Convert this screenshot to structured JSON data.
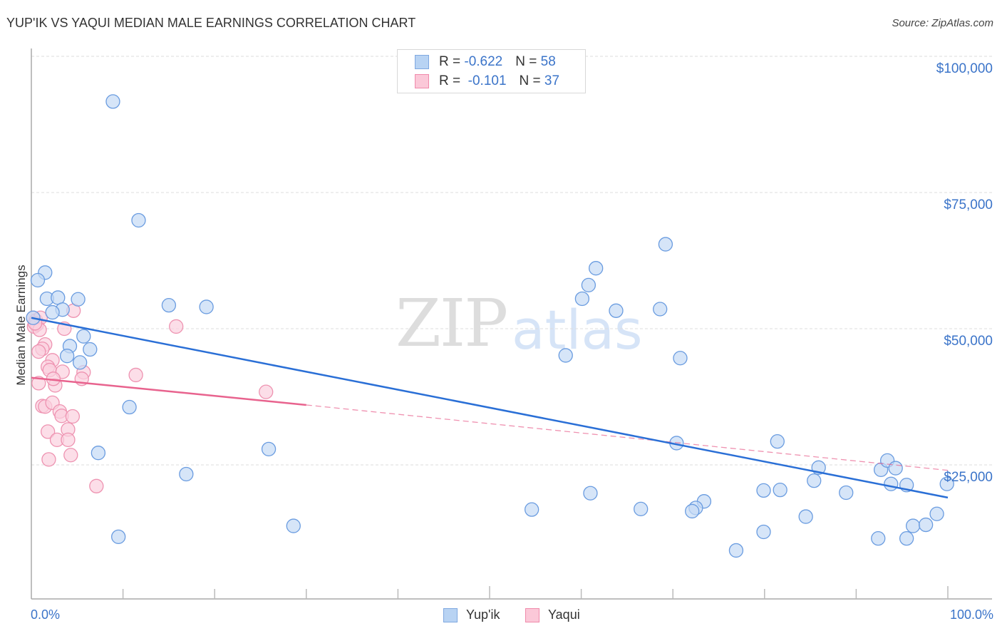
{
  "header": {
    "title": "YUP'IK VS YAQUI MEDIAN MALE EARNINGS CORRELATION CHART",
    "source": "Source: ZipAtlas.com"
  },
  "watermark": {
    "zip": "ZIP",
    "atlas": "atlas"
  },
  "legend": {
    "rows": [
      {
        "r_label": "R = ",
        "r_value": "-0.622",
        "n_label": "N = ",
        "n_value": "58",
        "color": "#b8d3f3",
        "border": "#7fa8e0"
      },
      {
        "r_label": "R = ",
        "r_value": " -0.101",
        "n_label": "N = ",
        "n_value": "37",
        "color": "#fbc8d8",
        "border": "#f08aab"
      }
    ]
  },
  "bottom_legend": [
    {
      "label": "Yup'ik",
      "color": "#b8d3f3",
      "border": "#7fa8e0"
    },
    {
      "label": "Yaqui",
      "color": "#fbc8d8",
      "border": "#f08aab"
    }
  ],
  "axes": {
    "y_label": "Median Male Earnings",
    "y_ticks": [
      "$100,000",
      "$75,000",
      "$50,000",
      "$25,000"
    ],
    "x_ticks": [
      "0.0%",
      "100.0%"
    ]
  },
  "colors": {
    "yupik_fill": "#c5daf5",
    "yupik_stroke": "#6a9ce0",
    "yupik_line": "#2a6fd6",
    "yaqui_fill": "#fbd0de",
    "yaqui_stroke": "#ee93b1",
    "yaqui_line": "#e8638e",
    "tick_text": "#3b74c9",
    "grid": "#dddddd"
  },
  "chart_data": {
    "type": "scatter",
    "title": "YUP'IK VS YAQUI MEDIAN MALE EARNINGS CORRELATION CHART",
    "xlabel": "",
    "ylabel": "Median Male Earnings",
    "xlim": [
      0,
      100
    ],
    "ylim": [
      0,
      105000
    ],
    "x_tick_labels": [
      "0.0%",
      "100.0%"
    ],
    "y_tick_labels": [
      "$25,000",
      "$50,000",
      "$75,000",
      "$100,000"
    ],
    "grid": true,
    "legend_position": "top-center",
    "series": [
      {
        "name": "Yup'ik",
        "R": -0.622,
        "N": 58,
        "trendline": {
          "x": [
            0,
            100
          ],
          "y": [
            52000,
            19000
          ]
        },
        "points": [
          [
            8.9,
            91700
          ],
          [
            11.7,
            69900
          ],
          [
            1.5,
            60300
          ],
          [
            0.7,
            58900
          ],
          [
            1.7,
            55500
          ],
          [
            2.9,
            55700
          ],
          [
            5.1,
            55400
          ],
          [
            3.4,
            53500
          ],
          [
            2.3,
            53000
          ],
          [
            15.0,
            54300
          ],
          [
            19.1,
            54000
          ],
          [
            5.7,
            48600
          ],
          [
            4.2,
            46800
          ],
          [
            6.4,
            46200
          ],
          [
            3.9,
            45000
          ],
          [
            5.3,
            43800
          ],
          [
            10.7,
            35600
          ],
          [
            7.3,
            27200
          ],
          [
            25.9,
            27900
          ],
          [
            16.9,
            23300
          ],
          [
            9.5,
            11800
          ],
          [
            28.6,
            13800
          ],
          [
            69.2,
            65500
          ],
          [
            61.6,
            61100
          ],
          [
            60.8,
            58000
          ],
          [
            60.1,
            55500
          ],
          [
            63.8,
            53300
          ],
          [
            68.6,
            53600
          ],
          [
            70.8,
            44600
          ],
          [
            58.3,
            45100
          ],
          [
            70.4,
            29000
          ],
          [
            81.4,
            29300
          ],
          [
            61.0,
            19800
          ],
          [
            54.6,
            16800
          ],
          [
            66.5,
            16900
          ],
          [
            73.4,
            18300
          ],
          [
            72.5,
            17100
          ],
          [
            72.1,
            16500
          ],
          [
            79.9,
            20300
          ],
          [
            81.7,
            20400
          ],
          [
            79.9,
            12700
          ],
          [
            84.5,
            15500
          ],
          [
            85.9,
            24500
          ],
          [
            85.4,
            22100
          ],
          [
            88.9,
            19900
          ],
          [
            92.7,
            24100
          ],
          [
            93.4,
            25800
          ],
          [
            94.3,
            24400
          ],
          [
            93.8,
            21500
          ],
          [
            95.5,
            21300
          ],
          [
            92.4,
            11500
          ],
          [
            95.5,
            11500
          ],
          [
            96.2,
            13800
          ],
          [
            97.6,
            14000
          ],
          [
            98.8,
            16000
          ],
          [
            99.9,
            21500
          ],
          [
            76.9,
            9300
          ],
          [
            0.2,
            52000
          ]
        ]
      },
      {
        "name": "Yaqui",
        "R": -0.101,
        "N": 37,
        "trendline": {
          "x": [
            0,
            30
          ],
          "y": [
            41000,
            36000
          ],
          "dashed_extension": {
            "x": [
              30,
              100
            ],
            "y": [
              36000,
              24000
            ]
          }
        },
        "points": [
          [
            0.2,
            52000
          ],
          [
            0.5,
            51500
          ],
          [
            0.3,
            50400
          ],
          [
            0.6,
            50800
          ],
          [
            1.0,
            52000
          ],
          [
            0.9,
            49800
          ],
          [
            4.6,
            53300
          ],
          [
            3.6,
            50000
          ],
          [
            15.8,
            50400
          ],
          [
            1.5,
            47100
          ],
          [
            1.2,
            46300
          ],
          [
            0.8,
            45800
          ],
          [
            2.3,
            44200
          ],
          [
            1.8,
            43000
          ],
          [
            2.0,
            42400
          ],
          [
            3.4,
            42100
          ],
          [
            5.7,
            42000
          ],
          [
            5.5,
            40800
          ],
          [
            11.4,
            41500
          ],
          [
            0.8,
            40000
          ],
          [
            2.6,
            39600
          ],
          [
            2.4,
            40800
          ],
          [
            25.6,
            38400
          ],
          [
            1.2,
            35800
          ],
          [
            1.5,
            35700
          ],
          [
            2.3,
            36400
          ],
          [
            3.1,
            34800
          ],
          [
            3.3,
            34000
          ],
          [
            4.5,
            33900
          ],
          [
            1.8,
            31100
          ],
          [
            4.0,
            31500
          ],
          [
            2.8,
            29600
          ],
          [
            4.0,
            29600
          ],
          [
            1.9,
            26000
          ],
          [
            4.3,
            26800
          ],
          [
            7.1,
            21100
          ],
          [
            0.4,
            51000
          ]
        ]
      }
    ]
  }
}
